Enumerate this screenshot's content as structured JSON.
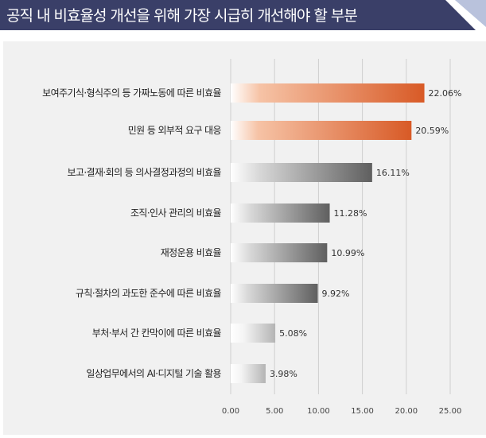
{
  "chart_data": {
    "type": "bar",
    "orientation": "horizontal",
    "title": "공직 내 비효율성 개선을 위해 가장 시급히 개선해야 할 부분",
    "categories": [
      "보여주기식·형식주의 등 가짜노동에 따른 비효율",
      "민원 등 외부적 요구 대응",
      "보고·결재·회의 등 의사결정과정의 비효율",
      "조직·인사 관리의 비효율",
      "재정운용 비효율",
      "규칙·절차의 과도한 준수에 따른 비효율",
      "부처·부서 간 칸막이에 따른 비효율",
      "일상업무에서의 AI·디지털 기술 활용"
    ],
    "values": [
      22.06,
      20.59,
      16.11,
      11.28,
      10.99,
      9.92,
      5.08,
      3.98
    ],
    "value_labels": [
      "22.06%",
      "20.59%",
      "16.11%",
      "11.28%",
      "10.99%",
      "9.92%",
      "5.08%",
      "3.98%"
    ],
    "xlim": [
      0,
      25
    ],
    "xticks": [
      "0.00",
      "5.00",
      "10.00",
      "15.00",
      "20.00",
      "25.00"
    ],
    "grid": true,
    "xlabel": "",
    "ylabel": "",
    "colors": {
      "highlight": "#e0642e",
      "normal": "#707070",
      "title_bg": "#3a3f68"
    },
    "bar_styles": [
      "orange",
      "orange",
      "gray",
      "gray",
      "gray",
      "gray",
      "light",
      "light"
    ]
  }
}
